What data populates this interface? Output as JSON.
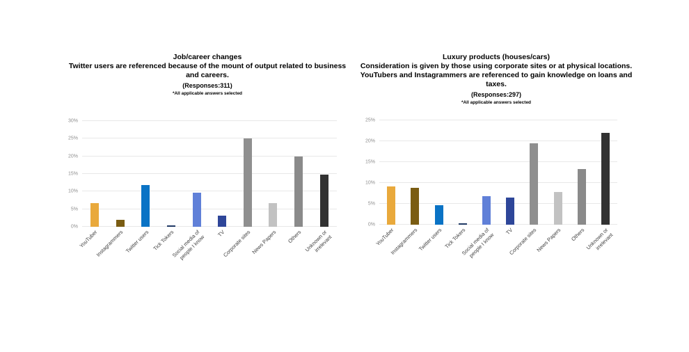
{
  "page": {
    "background": "#ffffff"
  },
  "chart_data": [
    {
      "type": "bar",
      "panel": "left",
      "title": "Job/career changes",
      "subtitle": "Twitter users are referenced because of the mount of output related to business and careers.",
      "responses_label": "(Responses:311)",
      "note": "*All applicable answers selected",
      "categories": [
        "YouTuber",
        "Instagrammers",
        "Twitter users",
        "Tick Tokers",
        "Social media of people I know",
        "TV",
        "Corporate sites",
        "News Papers",
        "Others",
        "Unknown or irrelevant"
      ],
      "values": [
        6.8,
        1.9,
        11.9,
        0.3,
        9.6,
        3.1,
        25.1,
        6.7,
        19.9,
        14.9
      ],
      "unit": "%",
      "ylim": [
        0,
        30
      ],
      "ytick_step": 5,
      "grid": true,
      "legend": false,
      "bar_colors": [
        "#E9A93C",
        "#7A5C12",
        "#0A73C5",
        "#1F3864",
        "#6080D8",
        "#2E4699",
        "#8F8F8F",
        "#C2C2C2",
        "#8A8A8A",
        "#323232"
      ]
    },
    {
      "type": "bar",
      "panel": "right",
      "title": "Luxury products (houses/cars)",
      "subtitle": "Consideration is given by those using corporate sites or at physical locations. YouTubers and Instagrammers are referenced to gain knowledge on loans and taxes.",
      "responses_label": "(Responses:297)",
      "note": "*All applicable answers selected",
      "categories": [
        "YouTuber",
        "Instagrammers",
        "Twitter users",
        "Tick Tokers",
        "Social media of people I know",
        "TV",
        "Corporate sites",
        "News Papers",
        "Others",
        "Unknown or irrelevant"
      ],
      "values": [
        9.1,
        8.8,
        4.7,
        0.3,
        6.9,
        6.5,
        19.5,
        7.9,
        13.4,
        22.0
      ],
      "unit": "%",
      "ylim": [
        0,
        25
      ],
      "ytick_step": 5,
      "grid": true,
      "legend": false,
      "bar_colors": [
        "#E9A93C",
        "#7A5C12",
        "#0A73C5",
        "#1F3864",
        "#6080D8",
        "#2E4699",
        "#8F8F8F",
        "#C2C2C2",
        "#8A8A8A",
        "#323232"
      ]
    }
  ]
}
